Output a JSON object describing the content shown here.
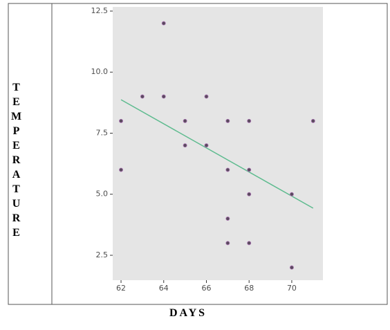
{
  "chart_data": {
    "type": "scatter",
    "x_label": "DAYS",
    "y_label": "TEMPERATURE",
    "x": [
      62,
      62,
      63,
      64,
      64,
      65,
      65,
      66,
      66,
      67,
      67,
      67,
      67,
      68,
      68,
      68,
      68,
      70,
      70,
      71
    ],
    "y": [
      8,
      6,
      9,
      12,
      9,
      8,
      7,
      9,
      7,
      8,
      6,
      4,
      3,
      8,
      6,
      5,
      3,
      5,
      2,
      8
    ],
    "color": "#5a4a5e",
    "trendline": {
      "x": [
        62,
        71
      ],
      "y": [
        8.87,
        4.43
      ],
      "color": "#5dbb8e"
    },
    "xlim": [
      61.61,
      71.46
    ],
    "ylim": [
      1.48,
      12.67
    ],
    "xticks": [
      62,
      64,
      66,
      68,
      70
    ],
    "yticks": [
      2.5,
      {
        "value": 5,
        "label": "5.0"
      },
      7.5,
      {
        "value": 10,
        "label": "10.0"
      },
      12.5
    ],
    "grid": false
  }
}
